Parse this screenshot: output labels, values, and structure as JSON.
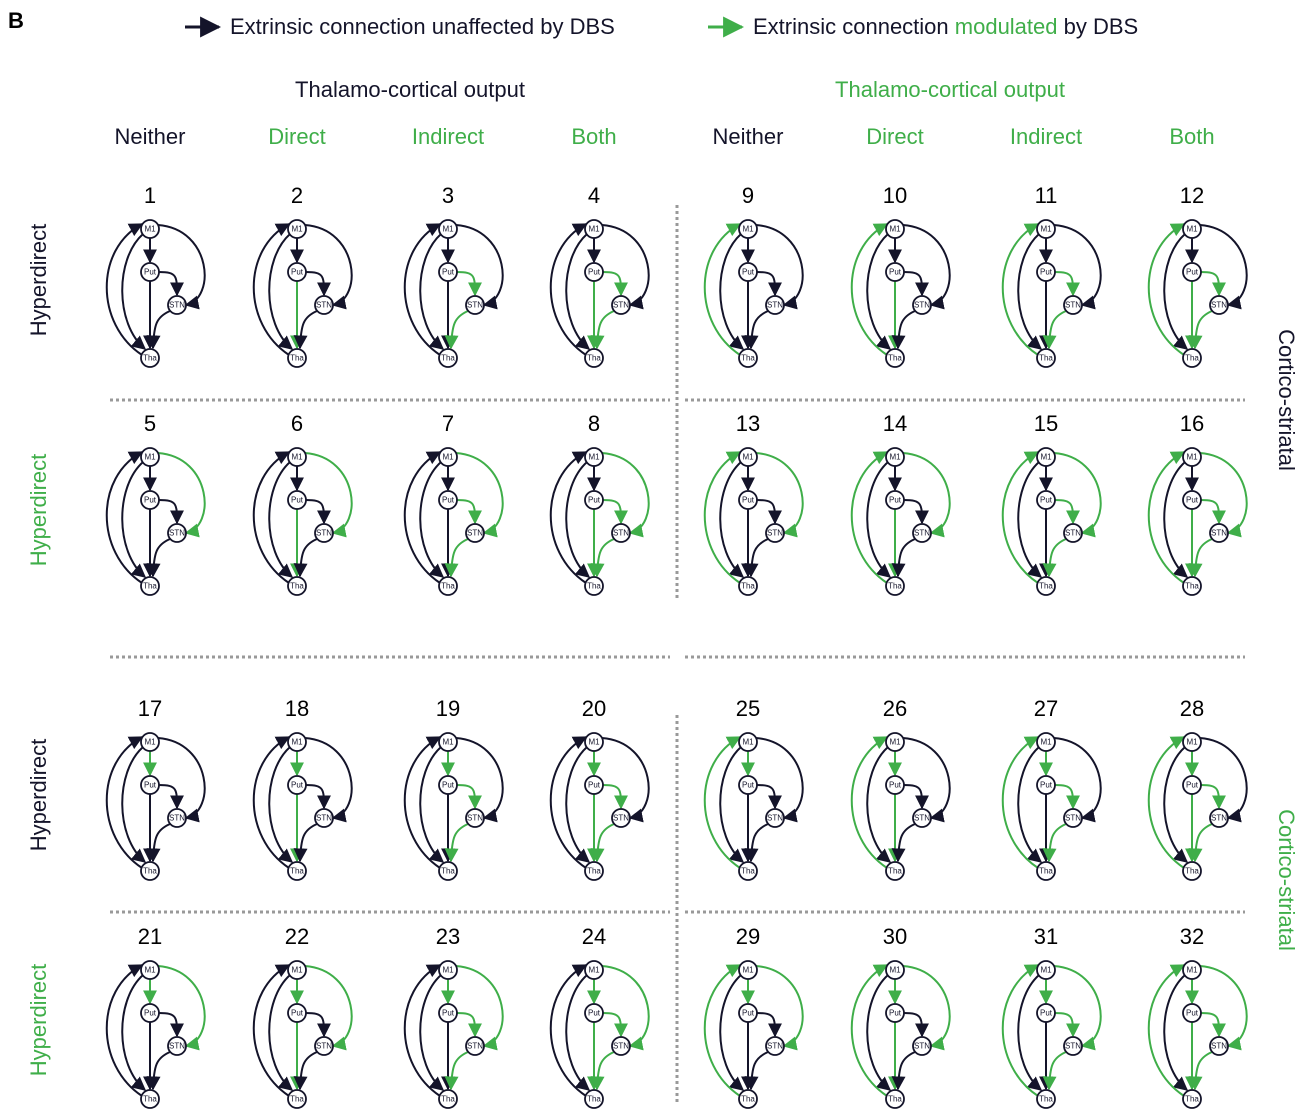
{
  "panel_label": "B",
  "colors": {
    "unaffected": "#14142a",
    "modulated": "#3fae49"
  },
  "legend": [
    {
      "parts": [
        {
          "text": "Extrinsic connection unaffected by DBS",
          "modulated": false
        }
      ],
      "modulated": false
    },
    {
      "parts": [
        {
          "text": "Extrinsic connection ",
          "modulated": false
        },
        {
          "text": "modulated",
          "modulated": true
        },
        {
          "text": " by DBS",
          "modulated": false
        }
      ],
      "modulated": true
    }
  ],
  "column_groups": [
    {
      "title": "Thalamo-cortical output",
      "thalamo_cortical_modulated": false
    },
    {
      "title": "Thalamo-cortical output",
      "thalamo_cortical_modulated": true
    }
  ],
  "columns": [
    {
      "label": "Neither",
      "direct_modulated": false,
      "indirect_modulated": false
    },
    {
      "label": "Direct",
      "direct_modulated": true,
      "indirect_modulated": false
    },
    {
      "label": "Indirect",
      "direct_modulated": false,
      "indirect_modulated": true
    },
    {
      "label": "Both",
      "direct_modulated": true,
      "indirect_modulated": true
    }
  ],
  "rows": [
    {
      "label": "Hyperdirect",
      "hyperdirect_modulated": false,
      "cortico_striatal_modulated": false
    },
    {
      "label": "Hyperdirect",
      "hyperdirect_modulated": true,
      "cortico_striatal_modulated": false
    },
    {
      "label": "Hyperdirect",
      "hyperdirect_modulated": false,
      "cortico_striatal_modulated": true
    },
    {
      "label": "Hyperdirect",
      "hyperdirect_modulated": true,
      "cortico_striatal_modulated": true
    }
  ],
  "side_labels": [
    {
      "label": "Cortico-striatal",
      "modulated": false
    },
    {
      "label": "Cortico-striatal",
      "modulated": true
    }
  ],
  "models": [
    [
      1,
      2,
      3,
      4,
      9,
      10,
      11,
      12
    ],
    [
      5,
      6,
      7,
      8,
      13,
      14,
      15,
      16
    ],
    [
      17,
      18,
      19,
      20,
      25,
      26,
      27,
      28
    ],
    [
      21,
      22,
      23,
      24,
      29,
      30,
      31,
      32
    ]
  ],
  "nodes": [
    "M1",
    "Put",
    "STN",
    "Tha"
  ]
}
